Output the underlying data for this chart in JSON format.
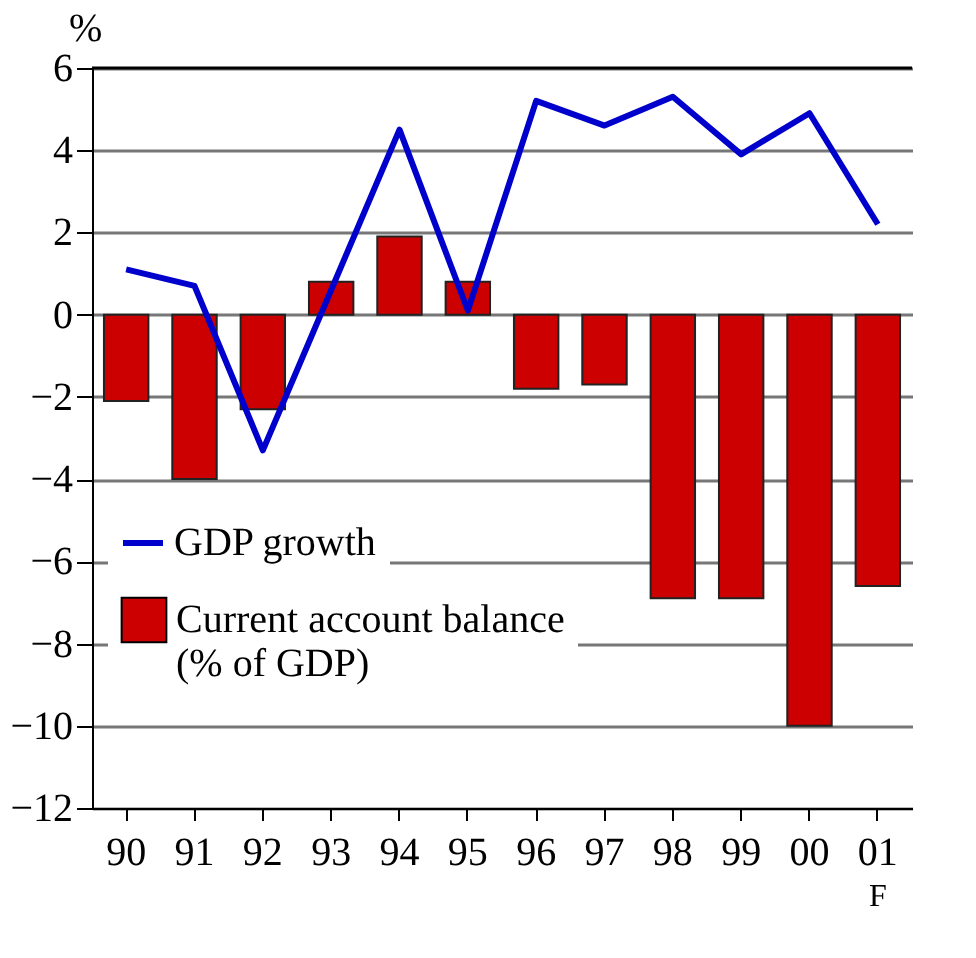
{
  "chart_data": {
    "type": "bar",
    "ylabel": "%",
    "categories": [
      "90",
      "91",
      "92",
      "93",
      "94",
      "95",
      "96",
      "97",
      "98",
      "99",
      "00",
      "01"
    ],
    "series": [
      {
        "name": "Current account balance (% of GDP)",
        "color": "#cc0000",
        "values": [
          -2.1,
          -4.0,
          -2.3,
          0.8,
          1.9,
          0.8,
          -1.8,
          -1.7,
          -6.9,
          -6.9,
          -10.0,
          -6.6
        ]
      },
      {
        "name": "GDP growth",
        "type": "line",
        "color": "#0000cc",
        "values": [
          1.1,
          0.7,
          -3.3,
          0.6,
          4.5,
          0.1,
          5.2,
          4.6,
          5.3,
          3.9,
          4.9,
          2.2
        ]
      }
    ],
    "ylim": [
      -12,
      6
    ],
    "yticks": [
      -12,
      -10,
      -8,
      -6,
      -4,
      -2,
      0,
      2,
      4,
      6
    ],
    "grid": "y",
    "legend": "bottom left",
    "marker": "none",
    "line_style": "solid",
    "annotations": [
      "F"
    ]
  }
}
